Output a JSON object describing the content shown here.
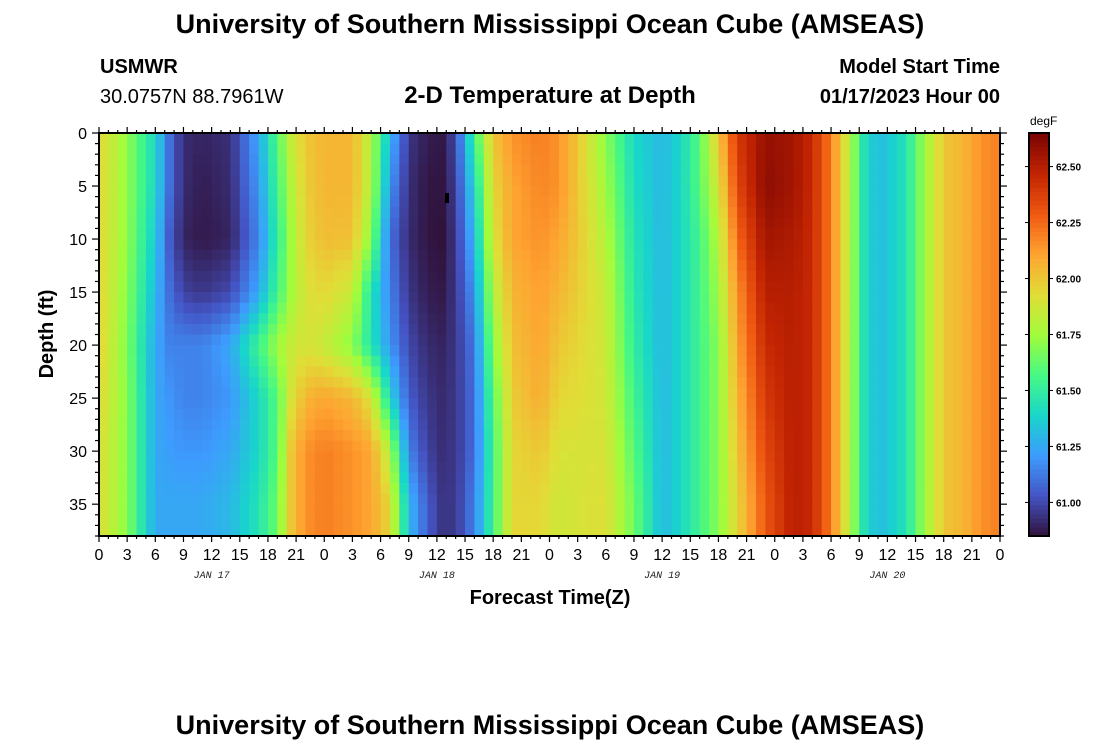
{
  "header": {
    "title": "University of Southern Mississippi Ocean Cube (AMSEAS)",
    "station": "USMWR",
    "location": "30.0757N  88.7961W",
    "plot_title": "2-D Temperature at Depth",
    "model_label": "Model Start Time",
    "model_time": "01/17/2023 Hour 00"
  },
  "footer": {
    "title": "University of Southern Mississippi Ocean Cube (AMSEAS)"
  },
  "chart_data": {
    "type": "heatmap",
    "title": "2-D Temperature at Depth",
    "xlabel": "Forecast Time(Z)",
    "ylabel": "Depth (ft)",
    "x_tick_labels": [
      "0",
      "3",
      "6",
      "9",
      "12",
      "15",
      "18",
      "21",
      "0",
      "3",
      "6",
      "9",
      "12",
      "15",
      "18",
      "21",
      "0",
      "3",
      "6",
      "9",
      "12",
      "15",
      "18",
      "21",
      "0",
      "3",
      "6",
      "9",
      "12",
      "15",
      "18",
      "21",
      "0"
    ],
    "day_labels": [
      "JAN 17",
      "JAN 18",
      "JAN 19",
      "JAN 20"
    ],
    "xlim_hours": [
      0,
      96
    ],
    "y_ticks": [
      0,
      5,
      10,
      15,
      20,
      25,
      30,
      35
    ],
    "ylim_ft": [
      0,
      38
    ],
    "y_inverted": true,
    "colorbar": {
      "unit": "degF",
      "ticks": [
        61.0,
        61.25,
        61.5,
        61.75,
        62.0,
        62.25,
        62.5
      ],
      "tick_labels": [
        "61.00",
        "61.25",
        "61.50",
        "61.75",
        "62.00",
        "62.25",
        "62.50"
      ],
      "range": [
        60.85,
        62.65
      ],
      "colormap": [
        "#30123b",
        "#4454c4",
        "#3e9bfe",
        "#18d6cb",
        "#46f884",
        "#a2fc3c",
        "#e1dd37",
        "#fea331",
        "#ef5911",
        "#c22402",
        "#7a0403"
      ]
    },
    "temperature_profile_degF": {
      "hours": [
        0,
        3,
        6,
        7.5,
        9,
        11,
        14,
        17,
        19,
        20.5,
        22,
        24,
        27,
        29,
        31,
        33,
        35,
        36.5,
        38,
        40,
        42,
        44,
        47,
        49,
        51,
        54,
        57,
        60,
        62,
        64,
        66,
        68,
        71,
        74,
        76,
        78,
        80,
        81.5,
        83,
        86,
        88,
        90,
        92,
        94,
        96
      ],
      "depths_ft": [
        0,
        5,
        10,
        15,
        20,
        25,
        30,
        35,
        38
      ],
      "values": [
        [
          61.95,
          61.95,
          61.95,
          61.96,
          61.97,
          61.94,
          61.92,
          61.92,
          61.92
        ],
        [
          61.72,
          61.72,
          61.72,
          61.7,
          61.68,
          61.7,
          61.7,
          61.7,
          61.7
        ],
        [
          61.4,
          61.4,
          61.35,
          61.3,
          61.25,
          61.25,
          61.25,
          61.25,
          61.25
        ],
        [
          61.1,
          61.1,
          61.05,
          61.1,
          61.15,
          61.2,
          61.22,
          61.25,
          61.25
        ],
        [
          60.92,
          60.92,
          60.9,
          60.98,
          61.15,
          61.15,
          61.2,
          61.25,
          61.25
        ],
        [
          60.9,
          60.88,
          60.87,
          60.95,
          61.15,
          61.15,
          61.2,
          61.25,
          61.25
        ],
        [
          60.93,
          60.92,
          60.9,
          61.0,
          61.25,
          61.2,
          61.25,
          61.3,
          61.3
        ],
        [
          61.25,
          61.2,
          61.15,
          61.25,
          61.55,
          61.4,
          61.4,
          61.45,
          61.45
        ],
        [
          61.6,
          61.55,
          61.5,
          61.55,
          61.75,
          61.6,
          61.6,
          61.65,
          61.65
        ],
        [
          61.85,
          61.8,
          61.75,
          61.75,
          61.85,
          61.9,
          62.0,
          62.0,
          62.0
        ],
        [
          62.0,
          61.98,
          61.95,
          61.9,
          61.9,
          62.05,
          62.15,
          62.15,
          62.15
        ],
        [
          62.05,
          62.05,
          62.03,
          61.95,
          61.85,
          62.1,
          62.2,
          62.2,
          62.2
        ],
        [
          62.05,
          62.05,
          62.02,
          61.85,
          61.7,
          62.05,
          62.15,
          62.15,
          62.15
        ],
        [
          61.8,
          61.8,
          61.7,
          61.45,
          61.45,
          61.9,
          62.1,
          62.1,
          62.1
        ],
        [
          61.3,
          61.2,
          61.1,
          61.15,
          61.2,
          61.4,
          61.8,
          61.95,
          61.95
        ],
        [
          60.95,
          60.93,
          60.92,
          60.95,
          61.0,
          61.05,
          61.15,
          61.3,
          61.3
        ],
        [
          60.88,
          60.86,
          60.86,
          60.88,
          60.92,
          60.95,
          60.98,
          61.05,
          61.05
        ],
        [
          60.87,
          60.86,
          60.85,
          60.87,
          60.9,
          60.92,
          60.93,
          60.95,
          60.95
        ],
        [
          61.0,
          60.97,
          60.95,
          60.95,
          60.95,
          60.95,
          60.95,
          60.95,
          60.95
        ],
        [
          61.55,
          61.4,
          61.3,
          61.2,
          61.12,
          61.1,
          61.1,
          61.15,
          61.15
        ],
        [
          62.0,
          61.95,
          61.9,
          61.8,
          61.7,
          61.6,
          61.55,
          61.55,
          61.55
        ],
        [
          62.15,
          62.1,
          62.1,
          62.05,
          62.02,
          61.98,
          61.95,
          61.95,
          61.95
        ],
        [
          62.2,
          62.18,
          62.15,
          62.12,
          62.1,
          62.08,
          62.0,
          61.95,
          61.95
        ],
        [
          62.15,
          62.15,
          62.1,
          62.05,
          62.0,
          61.95,
          61.9,
          61.87,
          61.87
        ],
        [
          62.0,
          62.0,
          62.0,
          61.98,
          61.95,
          61.93,
          61.9,
          61.9,
          61.9
        ],
        [
          61.7,
          61.75,
          61.8,
          61.85,
          61.87,
          61.88,
          61.9,
          61.92,
          61.92
        ],
        [
          61.4,
          61.42,
          61.45,
          61.47,
          61.5,
          61.55,
          61.6,
          61.65,
          61.65
        ],
        [
          61.3,
          61.3,
          61.3,
          61.3,
          61.3,
          61.3,
          61.3,
          61.3,
          61.3
        ],
        [
          61.4,
          61.4,
          61.4,
          61.4,
          61.4,
          61.4,
          61.4,
          61.4,
          61.4
        ],
        [
          61.6,
          61.6,
          61.55,
          61.55,
          61.55,
          61.55,
          61.55,
          61.55,
          61.55
        ],
        [
          62.0,
          61.9,
          61.8,
          61.75,
          61.7,
          61.7,
          61.7,
          61.7,
          61.7
        ],
        [
          62.4,
          62.35,
          62.25,
          62.15,
          62.1,
          62.05,
          62.0,
          61.95,
          61.95
        ],
        [
          62.58,
          62.6,
          62.55,
          62.5,
          62.45,
          62.4,
          62.35,
          62.3,
          62.3
        ],
        [
          62.55,
          62.55,
          62.52,
          62.5,
          62.5,
          62.5,
          62.5,
          62.5,
          62.5
        ],
        [
          62.45,
          62.45,
          62.45,
          62.45,
          62.45,
          62.45,
          62.45,
          62.45,
          62.45
        ],
        [
          62.2,
          62.2,
          62.2,
          62.2,
          62.2,
          62.2,
          62.2,
          62.2,
          62.2
        ],
        [
          61.8,
          61.8,
          61.8,
          61.8,
          61.8,
          61.8,
          61.8,
          61.8,
          61.8
        ],
        [
          61.45,
          61.45,
          61.45,
          61.45,
          61.45,
          61.45,
          61.45,
          61.45,
          61.45
        ],
        [
          61.3,
          61.3,
          61.3,
          61.3,
          61.3,
          61.3,
          61.3,
          61.3,
          61.3
        ],
        [
          61.45,
          61.45,
          61.45,
          61.45,
          61.45,
          61.45,
          61.45,
          61.45,
          61.45
        ],
        [
          61.75,
          61.75,
          61.75,
          61.75,
          61.75,
          61.75,
          61.75,
          61.75,
          61.75
        ],
        [
          62.0,
          62.0,
          62.0,
          62.0,
          62.0,
          62.0,
          62.0,
          62.0,
          62.0
        ],
        [
          62.05,
          62.05,
          62.05,
          62.05,
          62.05,
          62.05,
          62.05,
          62.05,
          62.05
        ],
        [
          62.15,
          62.15,
          62.15,
          62.15,
          62.15,
          62.15,
          62.15,
          62.15,
          62.15
        ],
        [
          62.2,
          62.2,
          62.2,
          62.2,
          62.2,
          62.2,
          62.2,
          62.2,
          62.2
        ]
      ]
    }
  }
}
